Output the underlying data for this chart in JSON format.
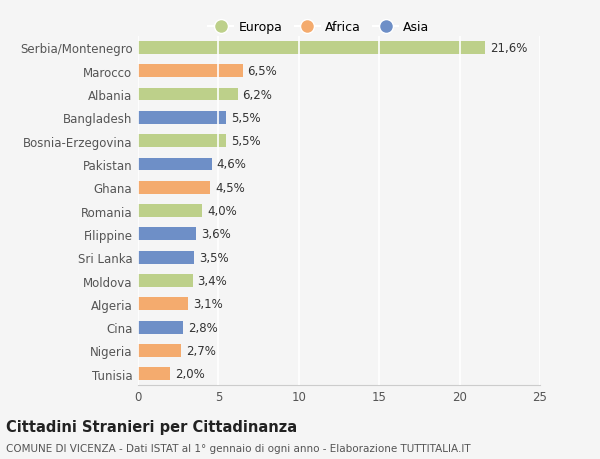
{
  "categories": [
    "Serbia/Montenegro",
    "Marocco",
    "Albania",
    "Bangladesh",
    "Bosnia-Erzegovina",
    "Pakistan",
    "Ghana",
    "Romania",
    "Filippine",
    "Sri Lanka",
    "Moldova",
    "Algeria",
    "Cina",
    "Nigeria",
    "Tunisia"
  ],
  "values": [
    21.6,
    6.5,
    6.2,
    5.5,
    5.5,
    4.6,
    4.5,
    4.0,
    3.6,
    3.5,
    3.4,
    3.1,
    2.8,
    2.7,
    2.0
  ],
  "labels": [
    "21,6%",
    "6,5%",
    "6,2%",
    "5,5%",
    "5,5%",
    "4,6%",
    "4,5%",
    "4,0%",
    "3,6%",
    "3,5%",
    "3,4%",
    "3,1%",
    "2,8%",
    "2,7%",
    "2,0%"
  ],
  "continent": [
    "Europa",
    "Africa",
    "Europa",
    "Asia",
    "Europa",
    "Asia",
    "Africa",
    "Europa",
    "Asia",
    "Asia",
    "Europa",
    "Africa",
    "Asia",
    "Africa",
    "Africa"
  ],
  "colors": {
    "Europa": "#bdd08a",
    "Africa": "#f4ab6e",
    "Asia": "#6e8fc7"
  },
  "xlim": [
    0,
    25
  ],
  "xticks": [
    0,
    5,
    10,
    15,
    20,
    25
  ],
  "title": "Cittadini Stranieri per Cittadinanza",
  "subtitle": "COMUNE DI VICENZA - Dati ISTAT al 1° gennaio di ogni anno - Elaborazione TUTTITALIA.IT",
  "background_color": "#f5f5f5",
  "bar_height": 0.55,
  "grid_color": "#ffffff",
  "label_fontsize": 8.5,
  "tick_fontsize": 8.5,
  "title_fontsize": 10.5,
  "subtitle_fontsize": 7.5
}
